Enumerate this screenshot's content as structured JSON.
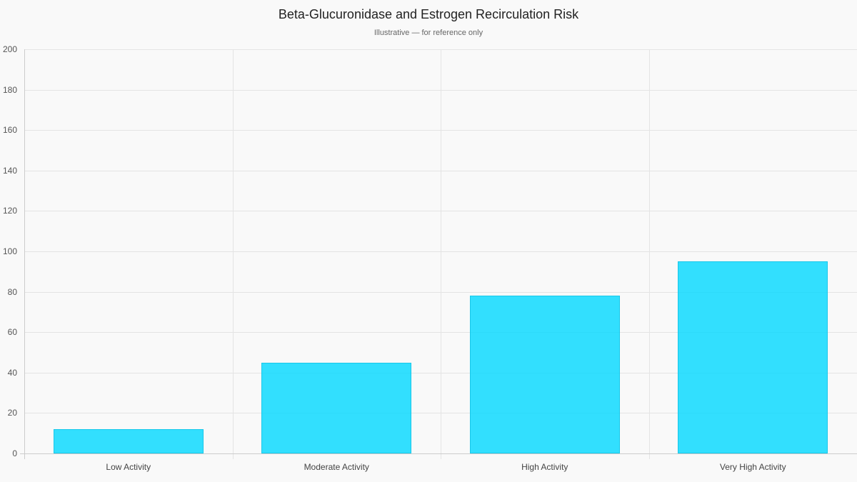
{
  "chart_data": {
    "type": "bar",
    "title": "Beta-Glucuronidase and Estrogen Recirculation Risk",
    "subtitle": "Illustrative — for reference only",
    "xlabel": "",
    "ylabel": "",
    "categories": [
      "Low Activity",
      "Moderate Activity",
      "High Activity",
      "Very High Activity"
    ],
    "values": [
      12,
      45,
      78,
      95
    ],
    "ylim": [
      0,
      200
    ],
    "yticks": [
      0,
      20,
      40,
      60,
      80,
      100,
      120,
      140,
      160,
      180,
      200
    ],
    "grid": true,
    "legend": "none",
    "bar_color": "#33dffc"
  }
}
